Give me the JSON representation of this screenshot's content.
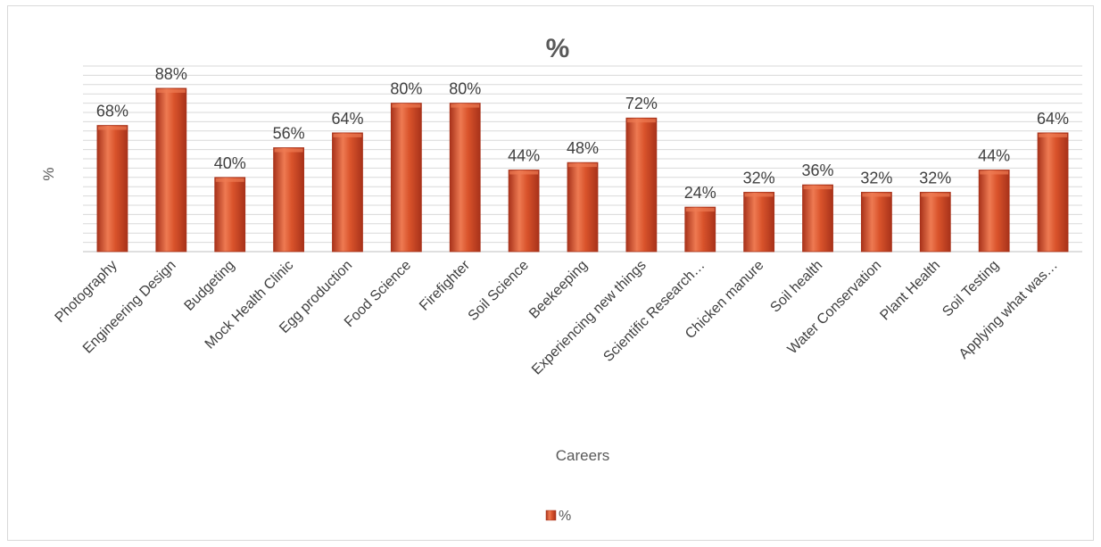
{
  "chart_data": {
    "type": "bar",
    "title": "%",
    "xlabel": "Careers",
    "ylabel": "%",
    "ylim": [
      0,
      100
    ],
    "grid": true,
    "legend": "bottom",
    "categories": [
      "Photography",
      "Engineering Design",
      "Budgeting",
      "Mock Health Clinic",
      "Egg production",
      "Food Science",
      "Firefighter",
      "Soil Science",
      "Beekeeping",
      "Experiencing new things",
      "Scientific Research…",
      "Chicken manure",
      "Soil health",
      "Water Conservation",
      "Plant Health",
      "Soil Testing",
      "Applying what was…"
    ],
    "series": [
      {
        "name": "%",
        "values": [
          68,
          88,
          40,
          56,
          64,
          80,
          80,
          44,
          48,
          72,
          24,
          32,
          36,
          32,
          32,
          44,
          64
        ],
        "data_labels": [
          "68%",
          "88%",
          "40%",
          "56%",
          "64%",
          "80%",
          "80%",
          "44%",
          "48%",
          "72%",
          "24%",
          "32%",
          "36%",
          "32%",
          "32%",
          "44%",
          "64%"
        ]
      }
    ],
    "colors": {
      "bar": "#d9532b",
      "bar_dark": "#a8321a",
      "bar_light": "#ee7a52",
      "grid": "#d9d9d9"
    }
  }
}
